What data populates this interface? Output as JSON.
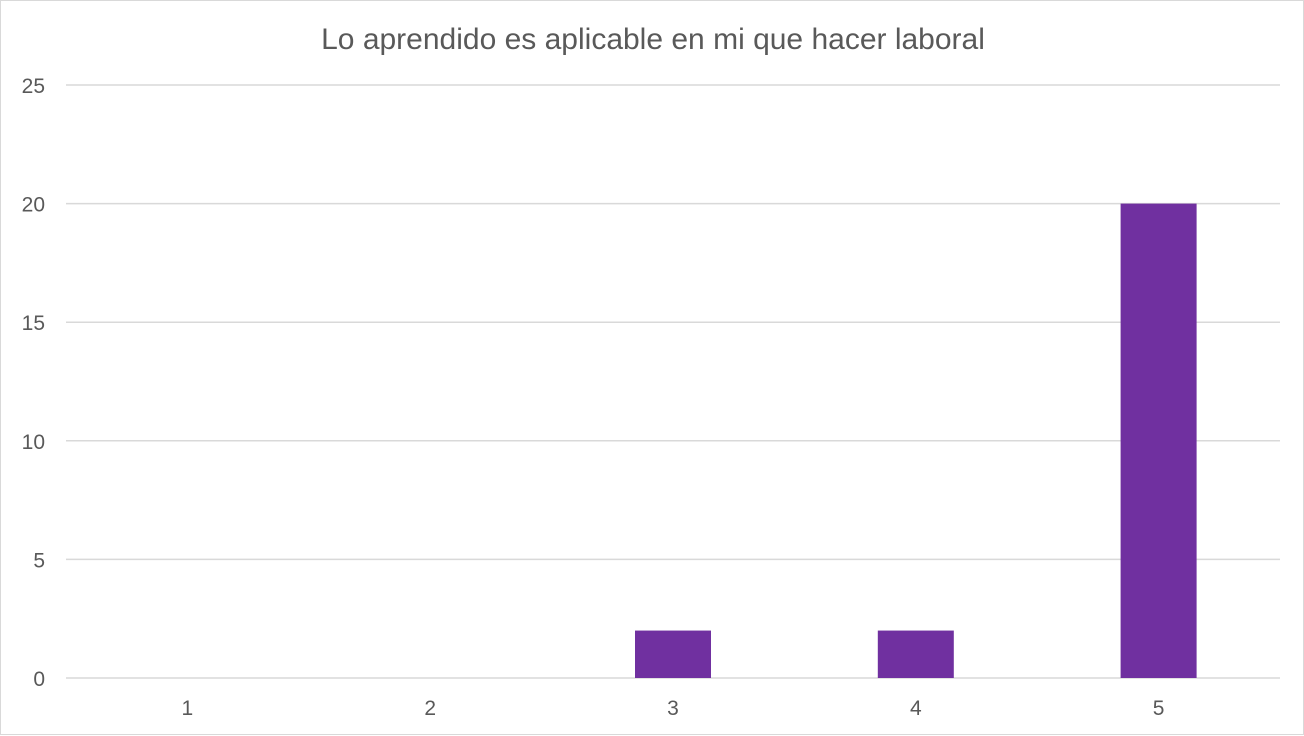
{
  "chart_data": {
    "type": "bar",
    "title": "Lo aprendido es aplicable en mi que hacer laboral",
    "xlabel": "",
    "ylabel": "",
    "categories": [
      "1",
      "2",
      "3",
      "4",
      "5"
    ],
    "values": [
      0,
      0,
      2,
      2,
      20
    ],
    "ylim": [
      0,
      25
    ],
    "yticks": [
      0,
      5,
      10,
      15,
      20,
      25
    ],
    "grid": true,
    "legend": "none",
    "bar_color": "#7030a0",
    "grid_color": "#d9d9d9"
  }
}
